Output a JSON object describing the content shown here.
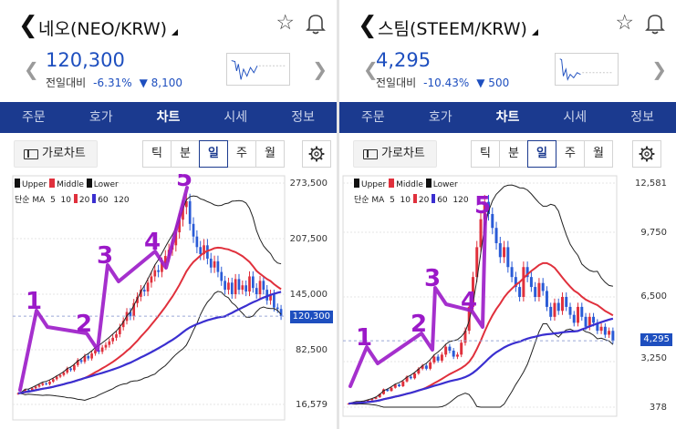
{
  "colors": {
    "accent": "#1e4fbf",
    "tab_bar": "#1b3a8f",
    "up": "#e0303c",
    "down": "#2a5bd6",
    "middle": "#e0303c",
    "ma60": "#3a2fd0",
    "band": "#222222",
    "annotation": "#9b19c8"
  },
  "tabs": [
    "주문",
    "호가",
    "차트",
    "시세",
    "정보"
  ],
  "active_tab": "차트",
  "landscape_label": "가로차트",
  "periods": [
    "틱",
    "분",
    "일",
    "주",
    "월"
  ],
  "active_period": "일",
  "legend": {
    "upper": "Upper",
    "middle": "Middle",
    "lower": "Lower",
    "ma_label": "단순 MA",
    "ma_periods": [
      "5",
      "10",
      "20",
      "60",
      "120"
    ]
  },
  "icons": [
    "chevron-left-icon",
    "star-icon",
    "bell-icon",
    "dropdown-triangle-icon",
    "chevron-right-icon",
    "landscape-chart-icon",
    "settings-gear-icon"
  ],
  "panels": [
    {
      "title": "네오(NEO/KRW)",
      "price": "120,300",
      "change_label": "전일대비",
      "change_pct": "-6.31%",
      "change_amount": "▼ 8,100",
      "y_labels": [
        "273,500",
        "207,500",
        "145,000",
        "120,300",
        "82,500",
        "16,579"
      ],
      "current_price_box": "120,300",
      "annotations": [
        "1",
        "2",
        "3",
        "4",
        "5"
      ],
      "chart_data": {
        "type": "candlestick",
        "y_ticks": [
          273500,
          207500,
          145000,
          82500,
          16579
        ],
        "current": 120300,
        "close": [
          30000,
          31000,
          34000,
          33000,
          36000,
          38000,
          40000,
          42000,
          41000,
          44000,
          47000,
          50000,
          52000,
          55000,
          60000,
          58000,
          64000,
          70000,
          68000,
          75000,
          72000,
          78000,
          82000,
          80000,
          85000,
          88000,
          92000,
          96000,
          100000,
          108000,
          115000,
          125000,
          120000,
          135000,
          142000,
          150000,
          148000,
          158000,
          165000,
          172000,
          170000,
          180000,
          188000,
          195000,
          200000,
          215000,
          230000,
          245000,
          252000,
          225000,
          210000,
          198000,
          190000,
          200000,
          185000,
          175000,
          182000,
          170000,
          160000,
          150000,
          158000,
          145000,
          162000,
          150000,
          155000,
          148000,
          165000,
          152000,
          145000,
          160000,
          150000,
          138000,
          145000,
          130000,
          128400,
          120300
        ]
      }
    },
    {
      "title": "스팀(STEEM/KRW)",
      "price": "4,295",
      "change_label": "전일대비",
      "change_pct": "-10.43%",
      "change_amount": "▼ 500",
      "y_labels": [
        "12,581",
        "9,750",
        "6,500",
        "4,295",
        "3,250",
        "378"
      ],
      "current_price_box": "4,295",
      "annotations": [
        "1",
        "2",
        "3",
        "4",
        "5"
      ],
      "chart_data": {
        "type": "candlestick",
        "y_ticks": [
          12581,
          9750,
          6500,
          3250,
          378
        ],
        "current": 4295,
        "close": [
          600,
          650,
          700,
          680,
          750,
          820,
          900,
          1000,
          1200,
          1500,
          1400,
          1600,
          1800,
          1700,
          2000,
          2300,
          2200,
          2500,
          2800,
          3000,
          2800,
          3200,
          3500,
          3300,
          3600,
          4000,
          3800,
          3500,
          3600,
          4200,
          4800,
          6000,
          7500,
          9000,
          10500,
          11500,
          10800,
          10000,
          9200,
          8500,
          9000,
          8000,
          7500,
          7000,
          6500,
          8000,
          7500,
          7000,
          6500,
          7200,
          6800,
          6000,
          5500,
          6200,
          5800,
          6500,
          6000,
          5600,
          5200,
          6000,
          5500,
          5000,
          5500,
          5200,
          4800,
          5000,
          4600,
          4795,
          4295
        ]
      }
    }
  ]
}
